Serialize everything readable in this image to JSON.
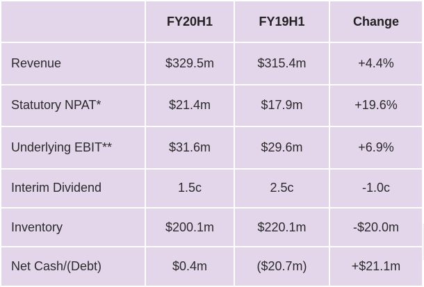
{
  "table": {
    "headers": [
      "",
      "FY20H1",
      "FY19H1",
      "Change"
    ],
    "rows": [
      {
        "label": "Revenue",
        "fy20h1": "$329.5m",
        "fy19h1": "$315.4m",
        "change": "+4.4%"
      },
      {
        "label": "Statutory NPAT*",
        "fy20h1": "$21.4m",
        "fy19h1": "$17.9m",
        "change": "+19.6%"
      },
      {
        "label": "Underlying EBIT**",
        "fy20h1": "$31.6m",
        "fy19h1": "$29.6m",
        "change": "+6.9%"
      },
      {
        "label": "Interim Dividend",
        "fy20h1": "1.5c",
        "fy19h1": "2.5c",
        "change": "-1.0c"
      },
      {
        "label": "Inventory",
        "fy20h1": "$200.1m",
        "fy19h1": "$220.1m",
        "change": "-$20.0m"
      },
      {
        "label": "Net Cash/(Debt)",
        "fy20h1": "$0.4m",
        "fy19h1": "($20.7m)",
        "change": "+$21.1m"
      }
    ]
  },
  "colors": {
    "cell_background": "#e3d5ea",
    "grid_lines": "#ffffff",
    "text": "#2b2b2b"
  }
}
